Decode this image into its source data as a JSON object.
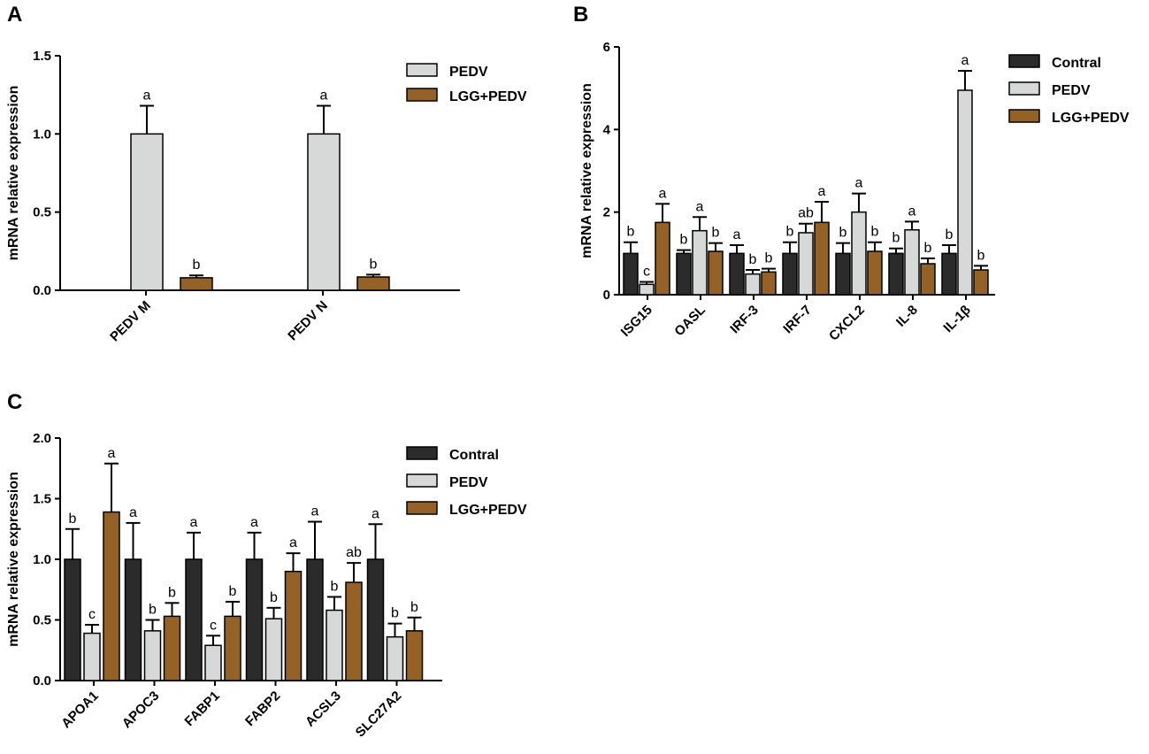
{
  "colors": {
    "Contral": "#2b2b2b",
    "PEDV": "#d7d9d8",
    "LGG+PEDV": "#946226"
  },
  "chart_data": [
    {
      "panel": "A",
      "type": "bar",
      "ylabel": "mRNA relative expression",
      "ylim": [
        0,
        1.5
      ],
      "yticks": [
        0.0,
        0.5,
        1.0,
        1.5
      ],
      "ytick_labels": [
        "0.0",
        "0.5",
        "1.0",
        "1.5"
      ],
      "categories": [
        "PEDV M",
        "PEDV N"
      ],
      "legend": [
        "PEDV",
        "LGG+PEDV"
      ],
      "legend_position": "top-right",
      "series": [
        {
          "name": "PEDV",
          "values": [
            1.0,
            1.0
          ],
          "errors": [
            0.18,
            0.18
          ],
          "labels": [
            "a",
            "a"
          ]
        },
        {
          "name": "LGG+PEDV",
          "values": [
            0.08,
            0.085
          ],
          "errors": [
            0.015,
            0.015
          ],
          "labels": [
            "b",
            "b"
          ]
        }
      ]
    },
    {
      "panel": "B",
      "type": "bar",
      "ylabel": "mRNA relative expression",
      "ylim": [
        0,
        6
      ],
      "yticks": [
        0,
        2,
        4,
        6
      ],
      "ytick_labels": [
        "0",
        "2",
        "4",
        "6"
      ],
      "categories": [
        "ISG15",
        "OASL",
        "IRF-3",
        "IRF-7",
        "CXCL2",
        "IL-8",
        "IL-1β"
      ],
      "legend": [
        "Contral",
        "PEDV",
        "LGG+PEDV"
      ],
      "legend_position": "top-right",
      "series": [
        {
          "name": "Contral",
          "values": [
            1.0,
            1.0,
            1.0,
            1.0,
            1.0,
            1.0,
            1.0
          ],
          "errors": [
            0.27,
            0.08,
            0.2,
            0.27,
            0.25,
            0.12,
            0.2
          ],
          "labels": [
            "b",
            "b",
            "a",
            "b",
            "b",
            "b",
            "b"
          ]
        },
        {
          "name": "PEDV",
          "values": [
            0.25,
            1.55,
            0.5,
            1.5,
            2.0,
            1.57,
            4.95
          ],
          "errors": [
            0.06,
            0.33,
            0.1,
            0.22,
            0.45,
            0.2,
            0.47
          ],
          "labels": [
            "c",
            "a",
            "b",
            "ab",
            "a",
            "a",
            "a"
          ]
        },
        {
          "name": "LGG+PEDV",
          "values": [
            1.75,
            1.05,
            0.55,
            1.75,
            1.05,
            0.75,
            0.6
          ],
          "errors": [
            0.45,
            0.2,
            0.08,
            0.5,
            0.22,
            0.13,
            0.1
          ],
          "labels": [
            "a",
            "b",
            "b",
            "a",
            "b",
            "b",
            "b"
          ]
        }
      ]
    },
    {
      "panel": "C",
      "type": "bar",
      "ylabel": "mRNA relative expression",
      "ylim": [
        0,
        2.0
      ],
      "yticks": [
        0.0,
        0.5,
        1.0,
        1.5,
        2.0
      ],
      "ytick_labels": [
        "0.0",
        "0.5",
        "1.0",
        "1.5",
        "2.0"
      ],
      "categories": [
        "APOA1",
        "APOC3",
        "FABP1",
        "FABP2",
        "ACSL3",
        "SLC27A2"
      ],
      "legend": [
        "Contral",
        "PEDV",
        "LGG+PEDV"
      ],
      "legend_position": "top-right",
      "series": [
        {
          "name": "Contral",
          "values": [
            1.0,
            1.0,
            1.0,
            1.0,
            1.0,
            1.0
          ],
          "errors": [
            0.25,
            0.3,
            0.22,
            0.22,
            0.31,
            0.29
          ],
          "labels": [
            "b",
            "a",
            "a",
            "a",
            "a",
            "a"
          ]
        },
        {
          "name": "PEDV",
          "values": [
            0.39,
            0.41,
            0.29,
            0.51,
            0.58,
            0.36
          ],
          "errors": [
            0.07,
            0.09,
            0.08,
            0.09,
            0.11,
            0.11
          ],
          "labels": [
            "c",
            "b",
            "c",
            "b",
            "b",
            "b"
          ]
        },
        {
          "name": "LGG+PEDV",
          "values": [
            1.39,
            0.53,
            0.53,
            0.9,
            0.81,
            0.41
          ],
          "errors": [
            0.4,
            0.11,
            0.12,
            0.15,
            0.16,
            0.11
          ],
          "labels": [
            "a",
            "b",
            "b",
            "a",
            "ab",
            "b"
          ]
        }
      ]
    }
  ]
}
